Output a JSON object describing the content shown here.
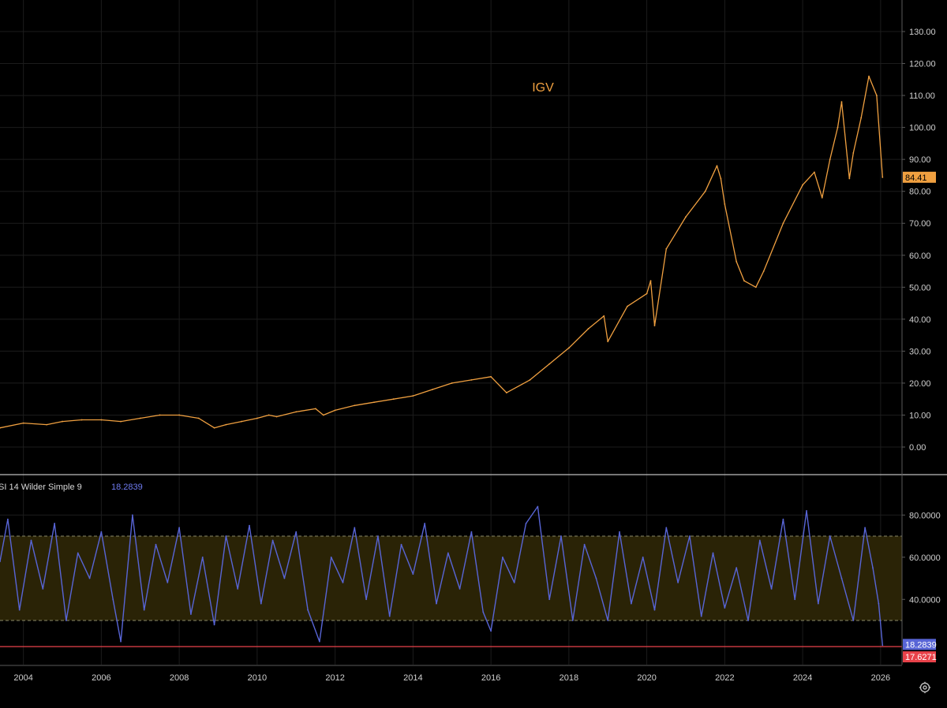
{
  "colors": {
    "background": "#000000",
    "grid": "#1c1c1c",
    "price_line": "#f0a040",
    "rsi_line": "#5865d6",
    "rsi_band_fill": "#2a2306",
    "rsi_band_edge": "#8a8a6a",
    "low_line": "#e8424a",
    "axis_line": "#5a5a5a",
    "separator": "#bdbdbd"
  },
  "icons": {
    "settings": "gear-icon"
  },
  "chart_data": [
    {
      "type": "line",
      "title": "IGV",
      "ylim": [
        -7,
        133
      ],
      "yticks": [
        0,
        10,
        20,
        30,
        40,
        50,
        60,
        70,
        80,
        90,
        100,
        110,
        120,
        130
      ],
      "ytick_labels": [
        "0.00",
        "10.00",
        "20.00",
        "30.00",
        "40.00",
        "50.00",
        "60.00",
        "70.00",
        "80.00",
        "90.00",
        "100.00",
        "110.00",
        "120.00",
        "130.00"
      ],
      "xlim": [
        2003.4,
        2026.55
      ],
      "xticks": [
        2004,
        2006,
        2008,
        2010,
        2012,
        2014,
        2016,
        2018,
        2020,
        2022,
        2024,
        2026
      ],
      "xtick_labels": [
        "2004",
        "2006",
        "2008",
        "2010",
        "2012",
        "2014",
        "2016",
        "2018",
        "2020",
        "2022",
        "2024",
        "2026"
      ],
      "last_value_label": "84.41",
      "last_value": 84.41,
      "grid": true,
      "series": [
        {
          "name": "IGV",
          "x": [
            2003.4,
            2004.0,
            2004.6,
            2005.0,
            2005.5,
            2006.0,
            2006.5,
            2007.0,
            2007.5,
            2008.0,
            2008.5,
            2008.9,
            2009.2,
            2009.6,
            2010.0,
            2010.3,
            2010.5,
            2011.0,
            2011.5,
            2011.7,
            2012.0,
            2012.5,
            2013.0,
            2013.5,
            2014.0,
            2014.5,
            2015.0,
            2015.5,
            2016.0,
            2016.4,
            2017.0,
            2017.5,
            2018.0,
            2018.5,
            2018.9,
            2019.0,
            2019.5,
            2020.0,
            2020.1,
            2020.2,
            2020.5,
            2021.0,
            2021.5,
            2021.8,
            2021.9,
            2022.0,
            2022.3,
            2022.5,
            2022.8,
            2023.0,
            2023.5,
            2024.0,
            2024.3,
            2024.5,
            2024.7,
            2024.9,
            2025.0,
            2025.2,
            2025.3,
            2025.5,
            2025.7,
            2025.9,
            2026.05
          ],
          "y": [
            6,
            7.5,
            7,
            8,
            8.5,
            8.5,
            8,
            9,
            10,
            10,
            9,
            6,
            7,
            8,
            9,
            10,
            9.5,
            11,
            12,
            10,
            11.5,
            13,
            14,
            15,
            16,
            18,
            20,
            21,
            22,
            17,
            21,
            26,
            31,
            37,
            41,
            33,
            44,
            48,
            52,
            38,
            62,
            72,
            80,
            88,
            84,
            76,
            58,
            52,
            50,
            55,
            70,
            82,
            86,
            78,
            90,
            100,
            108,
            84,
            92,
            103,
            116,
            110,
            84.41
          ]
        }
      ]
    },
    {
      "type": "line",
      "title": "",
      "indicator_label": "SI 14 Wilder Simple 9",
      "indicator_value": "18.2839",
      "ylim": [
        13,
        93
      ],
      "yticks": [
        40,
        60,
        80
      ],
      "ytick_labels": [
        "40.0000",
        "60.0000",
        "80.0000"
      ],
      "band": [
        30,
        70
      ],
      "last_value_label": "18.2839",
      "low_value_label": "17.6271",
      "last_value": 18.2839,
      "low_value": 17.6271,
      "grid": true,
      "series": [
        {
          "name": "SI 14 Wilder Simple 9",
          "x": [
            2003.4,
            2003.6,
            2003.9,
            2004.2,
            2004.5,
            2004.8,
            2005.1,
            2005.4,
            2005.7,
            2006.0,
            2006.3,
            2006.5,
            2006.8,
            2007.1,
            2007.4,
            2007.7,
            2008.0,
            2008.3,
            2008.6,
            2008.9,
            2009.2,
            2009.5,
            2009.8,
            2010.1,
            2010.4,
            2010.7,
            2011.0,
            2011.3,
            2011.6,
            2011.9,
            2012.2,
            2012.5,
            2012.8,
            2013.1,
            2013.4,
            2013.7,
            2014.0,
            2014.3,
            2014.6,
            2014.9,
            2015.2,
            2015.5,
            2015.8,
            2016.0,
            2016.3,
            2016.6,
            2016.9,
            2017.2,
            2017.5,
            2017.8,
            2018.1,
            2018.4,
            2018.7,
            2019.0,
            2019.3,
            2019.6,
            2019.9,
            2020.2,
            2020.5,
            2020.8,
            2021.1,
            2021.4,
            2021.7,
            2022.0,
            2022.3,
            2022.6,
            2022.9,
            2023.2,
            2023.5,
            2023.8,
            2024.1,
            2024.4,
            2024.7,
            2025.0,
            2025.3,
            2025.6,
            2025.8,
            2025.95,
            2026.05
          ],
          "y": [
            58,
            78,
            35,
            68,
            45,
            76,
            30,
            62,
            50,
            72,
            40,
            20,
            80,
            35,
            66,
            48,
            74,
            33,
            60,
            28,
            70,
            45,
            75,
            38,
            68,
            50,
            72,
            35,
            20,
            60,
            48,
            74,
            40,
            70,
            32,
            66,
            52,
            76,
            38,
            62,
            45,
            72,
            34,
            25,
            60,
            48,
            76,
            84,
            40,
            70,
            30,
            66,
            50,
            30,
            72,
            38,
            60,
            35,
            74,
            48,
            70,
            32,
            62,
            36,
            55,
            30,
            68,
            45,
            78,
            40,
            82,
            38,
            70,
            50,
            30,
            74,
            55,
            38,
            18.28
          ]
        }
      ]
    }
  ]
}
